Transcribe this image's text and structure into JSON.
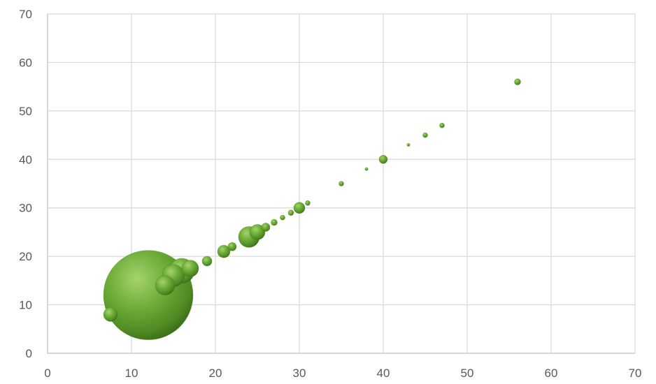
{
  "chart_data": {
    "type": "scatter",
    "variant": "bubble",
    "title": "",
    "xlabel": "",
    "ylabel": "",
    "xlim": [
      0,
      70
    ],
    "ylim": [
      0,
      70
    ],
    "x_ticks": [
      "0",
      "10",
      "20",
      "30",
      "40",
      "50",
      "60",
      "70"
    ],
    "y_ticks": [
      "0",
      "10",
      "20",
      "30",
      "40",
      "50",
      "60",
      "70"
    ],
    "grid": true,
    "legend": "none",
    "bubble_color": "#5f9e33",
    "series": [
      {
        "points": [
          {
            "x": 12,
            "y": 12,
            "size": 64
          },
          {
            "x": 7.5,
            "y": 8,
            "size": 10
          },
          {
            "x": 14,
            "y": 14,
            "size": 14
          },
          {
            "x": 15,
            "y": 16,
            "size": 16
          },
          {
            "x": 16,
            "y": 17,
            "size": 18
          },
          {
            "x": 17,
            "y": 17.5,
            "size": 12
          },
          {
            "x": 19,
            "y": 19,
            "size": 7
          },
          {
            "x": 21,
            "y": 21,
            "size": 9
          },
          {
            "x": 22,
            "y": 22,
            "size": 6
          },
          {
            "x": 24,
            "y": 24,
            "size": 15
          },
          {
            "x": 25,
            "y": 25,
            "size": 11
          },
          {
            "x": 26,
            "y": 26,
            "size": 6
          },
          {
            "x": 27,
            "y": 27,
            "size": 4.5
          },
          {
            "x": 28,
            "y": 28,
            "size": 3.5
          },
          {
            "x": 29,
            "y": 29,
            "size": 4
          },
          {
            "x": 30,
            "y": 30,
            "size": 8
          },
          {
            "x": 31,
            "y": 31,
            "size": 3.5
          },
          {
            "x": 35,
            "y": 35,
            "size": 3.5
          },
          {
            "x": 38,
            "y": 38,
            "size": 2.2
          },
          {
            "x": 40,
            "y": 40,
            "size": 6
          },
          {
            "x": 43,
            "y": 43,
            "size": 2.2
          },
          {
            "x": 45,
            "y": 45,
            "size": 3.5
          },
          {
            "x": 47,
            "y": 47,
            "size": 3.5
          },
          {
            "x": 56,
            "y": 56,
            "size": 4.5
          }
        ]
      }
    ]
  }
}
